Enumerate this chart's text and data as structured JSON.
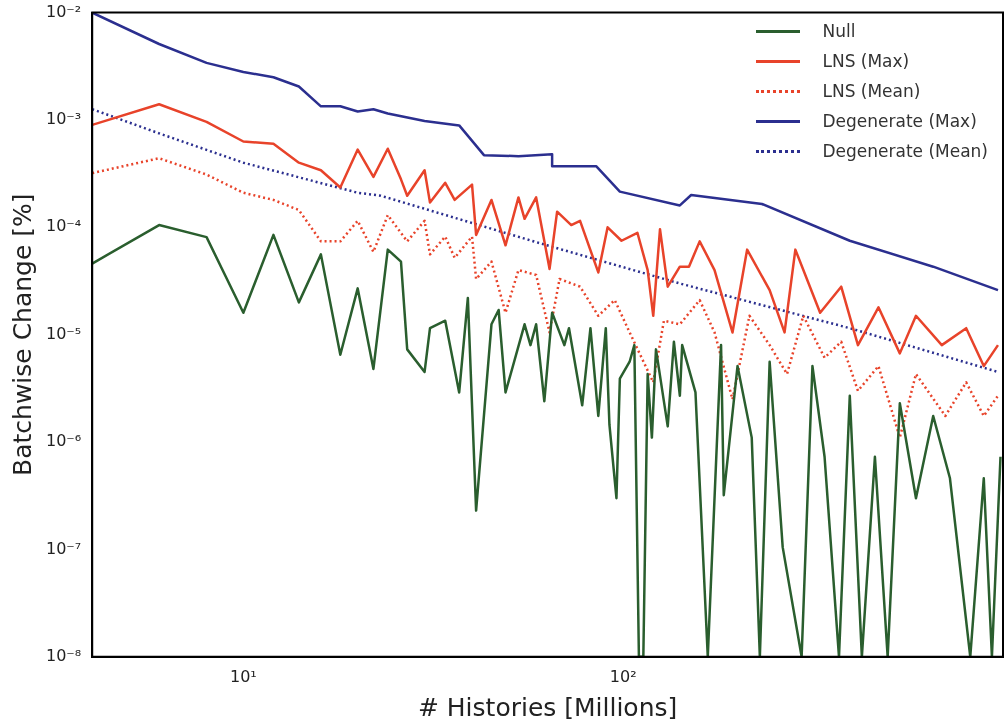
{
  "chart_data": {
    "type": "line",
    "xlabel": "# Histories [Millions]",
    "ylabel": "Batchwise Change [%]",
    "log": "xy",
    "grid": false,
    "legend": "top right",
    "marker": "none",
    "xlim": [
      4,
      1000
    ],
    "xticks": [
      {
        "value": 10,
        "label": "10¹"
      },
      {
        "value": 100,
        "label": "10²"
      }
    ],
    "ylim": [
      1e-08,
      0.01
    ],
    "yticks": [
      {
        "value": 1e-08,
        "label": "10⁻⁸"
      },
      {
        "value": 1e-07,
        "label": "10⁻⁷"
      },
      {
        "value": 1e-06,
        "label": "10⁻⁶"
      },
      {
        "value": 1e-05,
        "label": "10⁻⁵"
      },
      {
        "value": 0.0001,
        "label": "10⁻⁴"
      },
      {
        "value": 0.001,
        "label": "10⁻³"
      },
      {
        "value": 0.01,
        "label": "10⁻²"
      }
    ],
    "series": [
      {
        "name": "Null",
        "color": "#2a5e2e",
        "line_style": "solid",
        "x": [
          4,
          6,
          8,
          10,
          12,
          14,
          16,
          18,
          20,
          22,
          24,
          26,
          27,
          30,
          31,
          34,
          37,
          39,
          41,
          45,
          47,
          49,
          55,
          57,
          59,
          62,
          65,
          70,
          72,
          78,
          82,
          86,
          90,
          92,
          96,
          98,
          104,
          107,
          110,
          113,
          116,
          119,
          122,
          131,
          136,
          141,
          143,
          155,
          167,
          181,
          184,
          200,
          218,
          229,
          243,
          263,
          295,
          315,
          339,
          370,
          395,
          425,
          460,
          497,
          535,
          590,
          655,
          725,
          820,
          890,
          935,
          985
        ],
        "values": [
          4.6e-05,
          0.000105,
          8.1e-05,
          1.6e-05,
          8.5e-05,
          2e-05,
          5.6e-05,
          6.5e-06,
          2.7e-05,
          4.8e-06,
          6.2e-05,
          4.8e-05,
          7.3e-06,
          4.5e-06,
          1.15e-05,
          1.35e-05,
          2.9e-06,
          2.2e-05,
          2.3e-07,
          1.25e-05,
          1.7e-05,
          2.9e-06,
          1.25e-05,
          8e-06,
          1.25e-05,
          2.4e-06,
          1.6e-05,
          8e-06,
          1.15e-05,
          2.2e-06,
          1.15e-05,
          1.75e-06,
          1.15e-05,
          1.45e-06,
          3e-07,
          3.9e-06,
          5.6e-06,
          8e-06,
          1e-08,
          1e-08,
          4.3e-06,
          1.1e-06,
          7.3e-06,
          1.4e-06,
          8.6e-06,
          2.7e-06,
          8e-06,
          2.9e-06,
          1e-08,
          8e-06,
          3.2e-07,
          5.1e-06,
          1.1e-06,
          1e-08,
          5.6e-06,
          1.05e-07,
          1e-08,
          5.1e-06,
          7.3e-07,
          1e-08,
          2.7e-06,
          1e-08,
          7.3e-07,
          1e-08,
          2.3e-06,
          3e-07,
          1.75e-06,
          4.6e-07,
          1e-08,
          4.6e-07,
          1e-08,
          7.3e-07
        ]
      },
      {
        "name": "LNS (Max)",
        "color": "#e8432a",
        "line_style": "solid",
        "x": [
          4,
          6,
          8,
          10,
          12,
          14,
          16,
          18,
          20,
          22,
          24,
          26,
          27,
          30,
          31,
          34,
          36,
          40,
          41,
          45,
          49,
          53,
          55,
          59,
          64,
          67,
          73,
          77,
          86,
          91,
          99,
          109,
          116,
          120,
          125,
          131,
          141,
          149,
          159,
          174,
          194,
          212,
          243,
          266,
          284,
          330,
          375,
          415,
          470,
          535,
          590,
          690,
          800,
          890,
          970
        ],
        "values": [
          0.0009,
          0.0014,
          0.00096,
          0.00063,
          0.0006,
          0.0004,
          0.00034,
          0.000235,
          0.00053,
          0.000295,
          0.00054,
          0.00028,
          0.000197,
          0.00034,
          0.00017,
          0.00026,
          0.00018,
          0.00025,
          8.5e-05,
          0.00018,
          6.8e-05,
          0.00019,
          0.00012,
          0.00019,
          4.1e-05,
          0.00014,
          0.000105,
          0.000115,
          3.8e-05,
          0.0001,
          7.5e-05,
          8.9e-05,
          4e-05,
          1.5e-05,
          9.6e-05,
          2.8e-05,
          4.3e-05,
          4.3e-05,
          7.4e-05,
          4e-05,
          1.05e-05,
          6.2e-05,
          2.6e-05,
          1.05e-05,
          6.2e-05,
          1.6e-05,
          2.8e-05,
          8e-06,
          1.8e-05,
          6.7e-06,
          1.5e-05,
          8e-06,
          1.15e-05,
          5.1e-06,
          8e-06
        ]
      },
      {
        "name": "LNS (Mean)",
        "color": "#e8432a",
        "line_style": "dotted",
        "x": [
          4,
          6,
          8,
          10,
          12,
          14,
          16,
          18,
          20,
          22,
          24,
          27,
          30,
          31,
          34,
          36,
          40,
          41,
          45,
          49,
          53,
          59,
          64,
          68,
          77,
          86,
          95,
          104,
          120,
          128,
          141,
          159,
          174,
          194,
          215,
          243,
          270,
          298,
          339,
          375,
          415,
          470,
          535,
          590,
          705,
          800,
          890,
          970
        ],
        "values": [
          0.00032,
          0.00044,
          0.00031,
          0.00021,
          0.00018,
          0.000145,
          7.4e-05,
          7.4e-05,
          0.000115,
          5.9e-05,
          0.00013,
          7.4e-05,
          0.000115,
          5.6e-05,
          8.2e-05,
          5.2e-05,
          8.2e-05,
          3.3e-05,
          4.8e-05,
          1.6e-05,
          4e-05,
          3.6e-05,
          1.05e-05,
          3.3e-05,
          2.8e-05,
          1.5e-05,
          2.1e-05,
          1.05e-05,
          3.6e-06,
          1.35e-05,
          1.25e-05,
          2.1e-05,
          1.05e-05,
          2.5e-06,
          1.5e-05,
          8e-06,
          4.3e-06,
          1.5e-05,
          6.1e-06,
          8.6e-06,
          3e-06,
          5.1e-06,
          1.1e-06,
          4.3e-06,
          1.75e-06,
          3.6e-06,
          1.75e-06,
          2.7e-06
        ]
      },
      {
        "name": "Degenerate (Max)",
        "color": "#2b2f8f",
        "line_style": "solid",
        "x": [
          4,
          6,
          8,
          10,
          12,
          14,
          16,
          18,
          20,
          22,
          24,
          30,
          37,
          43,
          53,
          65,
          65,
          85,
          98,
          141,
          151,
          232,
          395,
          655,
          970
        ],
        "values": [
          0.01,
          0.0051,
          0.0034,
          0.0028,
          0.0025,
          0.00205,
          0.00134,
          0.00134,
          0.0012,
          0.00126,
          0.00115,
          0.00098,
          0.00089,
          0.00047,
          0.00046,
          0.00048,
          0.00037,
          0.00037,
          0.000215,
          0.00016,
          0.0002,
          0.000165,
          7.5e-05,
          4.3e-05,
          2.6e-05
        ]
      },
      {
        "name": "Degenerate (Mean)",
        "color": "#2b2f8f",
        "line_style": "dotted",
        "x": [
          4,
          6,
          10,
          20,
          23,
          63,
          141,
          395,
          970
        ],
        "values": [
          0.00126,
          0.00075,
          0.0004,
          0.00021,
          0.000197,
          6.8e-05,
          3e-05,
          1.15e-05,
          4.5e-06
        ]
      }
    ]
  }
}
